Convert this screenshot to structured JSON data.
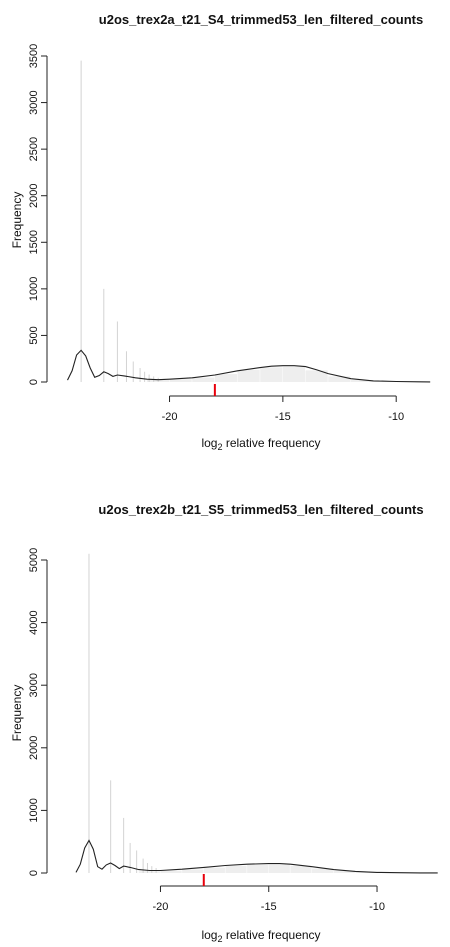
{
  "charts": [
    {
      "title": "u2os_trex2a_t21_S4_trimmed53_len_filtered_counts",
      "ylabel": "Frequency",
      "xlabel_main": "log",
      "xlabel_sub": "2",
      "xlabel_rest": " relative frequency",
      "y_ticks": [
        "0",
        "500",
        "1000",
        "1500",
        "2000",
        "2500",
        "3000",
        "3500"
      ],
      "x_ticks": [
        "-20",
        "-15",
        "-10"
      ]
    },
    {
      "title": "u2os_trex2b_t21_S5_trimmed53_len_filtered_counts",
      "ylabel": "Frequency",
      "xlabel_main": "log",
      "xlabel_sub": "2",
      "xlabel_rest": " relative frequency",
      "y_ticks": [
        "0",
        "1000",
        "2000",
        "3000",
        "4000",
        "5000"
      ],
      "x_ticks": [
        "-20",
        "-15",
        "-10"
      ]
    }
  ],
  "colors": {
    "bars": "#d3d3d3",
    "density": "#222222",
    "marker": "#e8000b",
    "axis": "#222222"
  },
  "chart_data": [
    {
      "type": "histogram",
      "title": "u2os_trex2a_t21_S4_trimmed53_len_filtered_counts",
      "xlabel": "log2 relative frequency",
      "ylabel": "Frequency",
      "xlim": [
        -24.7,
        -8.2
      ],
      "ylim": [
        0,
        3500
      ],
      "x_axis_range": [
        -20,
        -10
      ],
      "y_ticks": [
        0,
        500,
        1000,
        1500,
        2000,
        2500,
        3000,
        3500
      ],
      "x_ticks": [
        -20,
        -15,
        -10
      ],
      "marker_x": -18.0,
      "spikes": {
        "x": [
          -23.9,
          -22.9,
          -22.3,
          -21.9,
          -21.6,
          -21.3,
          -21.1,
          -20.9,
          -20.7,
          -20.5
        ],
        "values": [
          3450,
          1000,
          650,
          330,
          220,
          150,
          110,
          80,
          60,
          45
        ]
      },
      "density": {
        "x": [
          -24.5,
          -24.3,
          -24.1,
          -23.9,
          -23.7,
          -23.5,
          -23.3,
          -23.1,
          -22.9,
          -22.7,
          -22.5,
          -22.3,
          -22.0,
          -21.5,
          -21.0,
          -20.5,
          -20.0,
          -19.0,
          -18.0,
          -17.0,
          -16.0,
          -15.5,
          -15.0,
          -14.5,
          -14.0,
          -13.5,
          -13.0,
          -12.0,
          -11.0,
          -10.0,
          -9.0,
          -8.5
        ],
        "values": [
          20,
          120,
          290,
          340,
          280,
          150,
          50,
          70,
          110,
          90,
          60,
          75,
          65,
          45,
          30,
          25,
          30,
          45,
          75,
          120,
          155,
          170,
          175,
          175,
          165,
          130,
          90,
          35,
          12,
          5,
          2,
          1
        ]
      },
      "shaded": {
        "x": [
          -21.0,
          -20.0,
          -19.0,
          -18.0,
          -17.0,
          -16.0,
          -15.0,
          -14.0,
          -13.0,
          -12.0,
          -11.0,
          -10.0
        ],
        "values": [
          20,
          25,
          35,
          60,
          110,
          150,
          165,
          160,
          90,
          30,
          10,
          3
        ]
      }
    },
    {
      "type": "histogram",
      "title": "u2os_trex2b_t21_S5_trimmed53_len_filtered_counts",
      "xlabel": "log2 relative frequency",
      "ylabel": "Frequency",
      "xlim": [
        -24.5,
        -7.0
      ],
      "ylim": [
        0,
        5000
      ],
      "x_axis_range": [
        -20,
        -10
      ],
      "y_ticks": [
        0,
        1000,
        2000,
        3000,
        4000,
        5000
      ],
      "x_ticks": [
        -20,
        -15,
        -10
      ],
      "marker_x": -18.0,
      "spikes": {
        "x": [
          -23.3,
          -22.3,
          -21.7,
          -21.4,
          -21.1,
          -20.8,
          -20.6,
          -20.4,
          -20.2
        ],
        "values": [
          5100,
          1480,
          880,
          480,
          360,
          230,
          160,
          110,
          80
        ]
      },
      "density": {
        "x": [
          -23.9,
          -23.7,
          -23.5,
          -23.3,
          -23.1,
          -22.9,
          -22.7,
          -22.5,
          -22.3,
          -22.1,
          -21.9,
          -21.7,
          -21.4,
          -21.0,
          -20.5,
          -20.0,
          -19.0,
          -18.0,
          -17.0,
          -16.0,
          -15.0,
          -14.5,
          -14.0,
          -13.0,
          -12.0,
          -11.0,
          -10.0,
          -9.0,
          -8.0,
          -7.2
        ],
        "values": [
          10,
          140,
          400,
          520,
          380,
          100,
          60,
          130,
          160,
          120,
          70,
          110,
          90,
          55,
          40,
          40,
          60,
          90,
          120,
          140,
          150,
          150,
          140,
          100,
          55,
          25,
          10,
          4,
          2,
          1
        ]
      },
      "shaded": {
        "x": [
          -21.0,
          -20.0,
          -19.0,
          -18.0,
          -17.0,
          -16.0,
          -15.0,
          -14.0,
          -13.0,
          -12.0,
          -11.0,
          -10.0,
          -9.0,
          -8.0
        ],
        "values": [
          25,
          30,
          45,
          70,
          100,
          125,
          135,
          130,
          95,
          50,
          20,
          8,
          3,
          1
        ]
      }
    }
  ]
}
